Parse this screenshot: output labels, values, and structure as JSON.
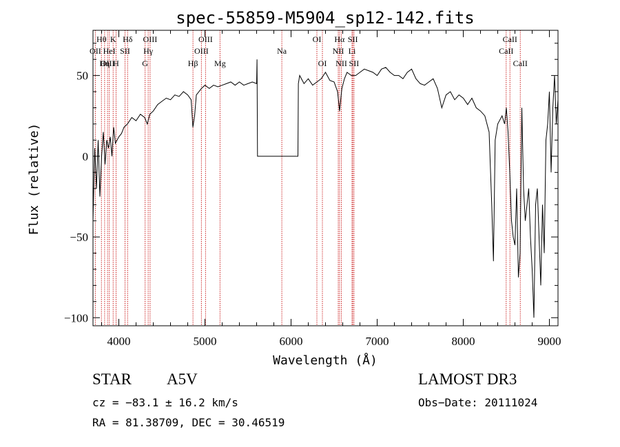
{
  "chart_data": {
    "type": "line",
    "title": "spec-55859-M5904_sp12-142.fits",
    "xlabel": "Wavelength (Å)",
    "ylabel": "Flux (relative)",
    "xlim": [
      3700,
      9100
    ],
    "ylim": [
      -105,
      78
    ],
    "xticks": [
      4000,
      5000,
      6000,
      7000,
      8000,
      9000
    ],
    "yticks": [
      -100,
      -50,
      0,
      50
    ],
    "grid": false,
    "line_color": "#000000",
    "marker_color": "#cc2222",
    "spectral_lines": [
      {
        "label": "Hθ",
        "x": 3798,
        "row": 0
      },
      {
        "label": "OII",
        "x": 3727,
        "row": 1
      },
      {
        "label": "OIII",
        "x": 3869,
        "row": 2
      },
      {
        "label": "K",
        "x": 3934,
        "row": 0
      },
      {
        "label": "HeI",
        "x": 3889,
        "row": 1
      },
      {
        "label": "Hη",
        "x": 3835,
        "row": 2
      },
      {
        "label": "H",
        "x": 3968,
        "row": 2
      },
      {
        "label": "SII",
        "x": 4072,
        "row": 1
      },
      {
        "label": "Hδ",
        "x": 4102,
        "row": 0
      },
      {
        "label": "OIII",
        "x": 4363,
        "row": 0
      },
      {
        "label": "Hγ",
        "x": 4341,
        "row": 1
      },
      {
        "label": "G",
        "x": 4305,
        "row": 2
      },
      {
        "label": "Hβ",
        "x": 4861,
        "row": 2
      },
      {
        "label": "OIII",
        "x": 5007,
        "row": 0
      },
      {
        "label": "OIII",
        "x": 4959,
        "row": 1
      },
      {
        "label": "Mg",
        "x": 5175,
        "row": 2
      },
      {
        "label": "Na",
        "x": 5893,
        "row": 1
      },
      {
        "label": "OI",
        "x": 6300,
        "row": 0
      },
      {
        "label": "OI",
        "x": 6364,
        "row": 2
      },
      {
        "label": "Hα",
        "x": 6563,
        "row": 0
      },
      {
        "label": "NII",
        "x": 6548,
        "row": 1
      },
      {
        "label": "NII",
        "x": 6584,
        "row": 2
      },
      {
        "label": "SII",
        "x": 6717,
        "row": 0
      },
      {
        "label": "Li",
        "x": 6708,
        "row": 1
      },
      {
        "label": "SII",
        "x": 6731,
        "row": 2
      },
      {
        "label": "CaII",
        "x": 8542,
        "row": 0
      },
      {
        "label": "CaII",
        "x": 8498,
        "row": 1
      },
      {
        "label": "CaII",
        "x": 8662,
        "row": 2
      }
    ],
    "series": [
      {
        "x": [
          3700,
          3720,
          3740,
          3760,
          3780,
          3800,
          3820,
          3840,
          3860,
          3880,
          3900,
          3920,
          3940,
          3960,
          3980,
          4000,
          4030,
          4060,
          4100,
          4150,
          4200,
          4250,
          4300,
          4330,
          4360,
          4400,
          4450,
          4500,
          4550,
          4600,
          4650,
          4700,
          4750,
          4800,
          4840,
          4860,
          4880,
          4900,
          4930,
          4960,
          5000,
          5050,
          5100,
          5150,
          5200,
          5250,
          5300,
          5350,
          5400,
          5450,
          5500,
          5550,
          5600,
          5605,
          5610,
          6080,
          6085,
          6100,
          6150,
          6200,
          6250,
          6300,
          6350,
          6400,
          6450,
          6500,
          6540,
          6563,
          6590,
          6620,
          6650,
          6700,
          6750,
          6800,
          6850,
          6900,
          6950,
          7000,
          7050,
          7100,
          7150,
          7200,
          7250,
          7300,
          7350,
          7400,
          7450,
          7500,
          7550,
          7600,
          7650,
          7700,
          7750,
          7800,
          7850,
          7900,
          7950,
          8000,
          8050,
          8100,
          8150,
          8200,
          8250,
          8300,
          8330,
          8350,
          8370,
          8400,
          8450,
          8480,
          8500,
          8520,
          8540,
          8560,
          8580,
          8600,
          8620,
          8640,
          8660,
          8680,
          8700,
          8720,
          8740,
          8760,
          8780,
          8800,
          8820,
          8840,
          8860,
          8880,
          8900,
          8920,
          8940,
          8960,
          8980,
          9000,
          9020,
          9040,
          9060,
          9080,
          9100
        ],
        "values": [
          -40,
          5,
          -20,
          10,
          -25,
          0,
          15,
          -5,
          10,
          5,
          12,
          0,
          18,
          8,
          10,
          12,
          14,
          18,
          20,
          24,
          22,
          26,
          24,
          20,
          26,
          28,
          32,
          34,
          36,
          35,
          38,
          37,
          40,
          38,
          35,
          18,
          25,
          38,
          40,
          42,
          44,
          42,
          44,
          43,
          44,
          45,
          46,
          44,
          46,
          44,
          45,
          46,
          45,
          60,
          0,
          0,
          45,
          50,
          45,
          48,
          44,
          46,
          48,
          52,
          47,
          46,
          40,
          28,
          42,
          48,
          52,
          50,
          50,
          52,
          54,
          53,
          52,
          50,
          54,
          55,
          52,
          50,
          50,
          48,
          52,
          54,
          48,
          45,
          44,
          46,
          48,
          42,
          30,
          38,
          40,
          35,
          38,
          36,
          32,
          36,
          30,
          28,
          25,
          15,
          -30,
          -65,
          10,
          20,
          25,
          20,
          30,
          15,
          -10,
          -40,
          -50,
          -55,
          -20,
          -75,
          -60,
          30,
          -20,
          -40,
          -30,
          -20,
          -50,
          -70,
          -100,
          -30,
          -20,
          -50,
          -80,
          -30,
          -60,
          10,
          20,
          40,
          -10,
          30,
          50,
          20,
          35
        ]
      }
    ]
  },
  "info": {
    "object_type": "STAR",
    "subclass": "A5V",
    "survey": "LAMOST DR3",
    "cz": "cz = −83.1 ± 16.2 km/s",
    "obs_date": "Obs−Date: 20111024",
    "coords": "RA =  81.38709, DEC =  30.46519"
  }
}
